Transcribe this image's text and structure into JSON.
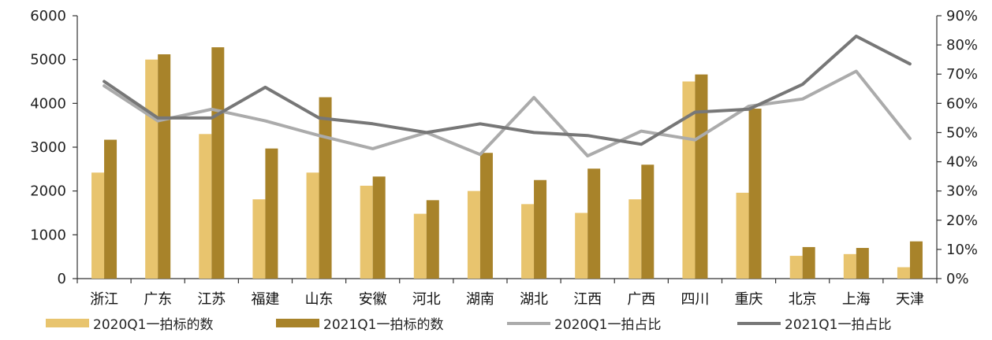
{
  "chart_data": {
    "type": "bar",
    "categories": [
      "浙江",
      "广东",
      "江苏",
      "福建",
      "山东",
      "安徽",
      "河北",
      "湖南",
      "湖北",
      "江西",
      "广西",
      "四川",
      "重庆",
      "北京",
      "上海",
      "天津"
    ],
    "series": [
      {
        "name": "2020Q1一拍标的数",
        "kind": "bar",
        "axis": "left",
        "color": "#E8C46E",
        "values": [
          2420,
          5000,
          3300,
          1810,
          2420,
          2120,
          1480,
          2000,
          1700,
          1500,
          1810,
          4500,
          1960,
          520,
          560,
          260
        ]
      },
      {
        "name": "2021Q1一拍标的数",
        "kind": "bar",
        "axis": "left",
        "color": "#A8832A",
        "values": [
          3170,
          5120,
          5280,
          2970,
          4140,
          2330,
          1790,
          2870,
          2250,
          2510,
          2600,
          4660,
          3880,
          720,
          700,
          850
        ]
      },
      {
        "name": "2020Q1一拍占比",
        "kind": "line",
        "axis": "right",
        "color": "#ABABAB",
        "values": [
          0.66,
          0.54,
          0.58,
          0.54,
          0.49,
          0.445,
          0.5,
          0.425,
          0.62,
          0.42,
          0.505,
          0.475,
          0.59,
          0.615,
          0.71,
          0.48
        ]
      },
      {
        "name": "2021Q1一拍占比",
        "kind": "line",
        "axis": "right",
        "color": "#777777",
        "values": [
          0.675,
          0.55,
          0.55,
          0.655,
          0.55,
          0.53,
          0.5,
          0.53,
          0.5,
          0.49,
          0.46,
          0.57,
          0.58,
          0.665,
          0.83,
          0.735
        ]
      }
    ],
    "y_left": {
      "min": 0,
      "max": 6000,
      "step": 1000,
      "ticks": [
        "0",
        "1000",
        "2000",
        "3000",
        "4000",
        "5000",
        "6000"
      ]
    },
    "y_right": {
      "min": 0,
      "max": 0.9,
      "step": 0.1,
      "ticks": [
        "0%",
        "10%",
        "20%",
        "30%",
        "40%",
        "50%",
        "60%",
        "70%",
        "80%",
        "90%"
      ]
    },
    "grid": false,
    "legend_position": "bottom"
  }
}
